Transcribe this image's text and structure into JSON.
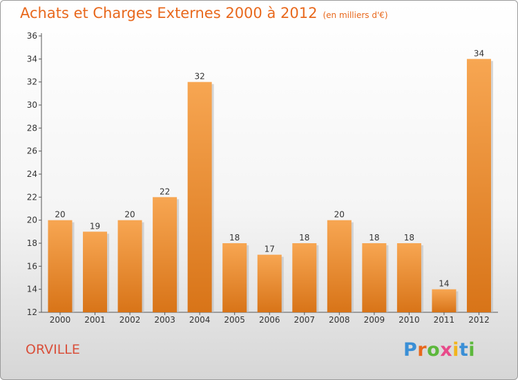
{
  "header": {
    "title": "Achats et Charges Externes 2000 à 2012",
    "unit": "(en milliers d'€)"
  },
  "footer": {
    "commune": "ORVILLE"
  },
  "logo": {
    "letters": [
      {
        "ch": "P",
        "color": "#3a8fd6"
      },
      {
        "ch": "r",
        "color": "#e8681c"
      },
      {
        "ch": "o",
        "color": "#5cb83c"
      },
      {
        "ch": "x",
        "color": "#e84a8a"
      },
      {
        "ch": "i",
        "color": "#f2b41c"
      },
      {
        "ch": "t",
        "color": "#3a8fd6"
      },
      {
        "ch": "i",
        "color": "#5cb83c"
      }
    ]
  },
  "chart_data": {
    "type": "bar",
    "title": "Achats et Charges Externes 2000 à 2012",
    "subtitle": "(en milliers d'€)",
    "categories": [
      "2000",
      "2001",
      "2002",
      "2003",
      "2004",
      "2005",
      "2006",
      "2007",
      "2008",
      "2009",
      "2010",
      "2011",
      "2012"
    ],
    "values": [
      20,
      19,
      20,
      22,
      32,
      18,
      17,
      18,
      20,
      18,
      18,
      14,
      34
    ],
    "ylim": [
      12,
      36
    ],
    "yticks": [
      12,
      14,
      16,
      18,
      20,
      22,
      24,
      26,
      28,
      30,
      32,
      34,
      36
    ],
    "grid": false,
    "colors": {
      "bar_light": "#f7a652",
      "bar_dark": "#d87418",
      "text": "#333333",
      "axis": "#555555"
    }
  }
}
